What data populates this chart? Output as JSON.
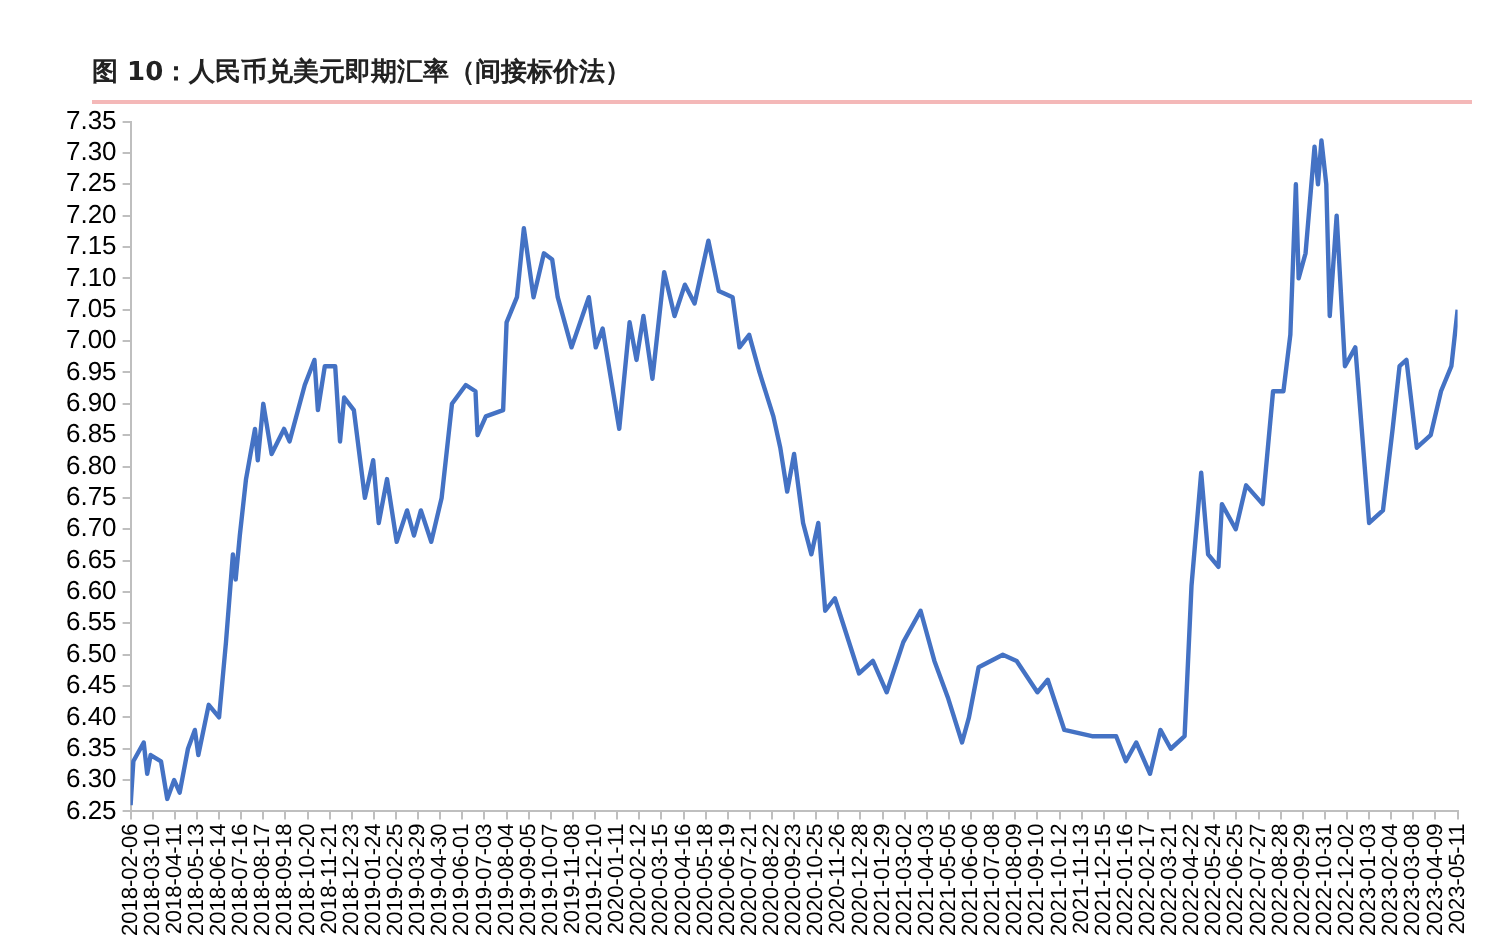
{
  "chart_data": {
    "type": "line",
    "title": "图 10：人民币兑美元即期汇率（间接标价法）",
    "x": [
      "2018-02-06",
      "2018-02-10",
      "2018-02-25",
      "2018-03-02",
      "2018-03-07",
      "2018-03-22",
      "2018-03-31",
      "2018-04-10",
      "2018-04-18",
      "2018-04-30",
      "2018-05-10",
      "2018-05-15",
      "2018-05-30",
      "2018-06-14",
      "2018-06-24",
      "2018-07-04",
      "2018-07-08",
      "2018-07-14",
      "2018-07-23",
      "2018-08-05",
      "2018-08-09",
      "2018-08-17",
      "2018-08-29",
      "2018-09-16",
      "2018-09-24",
      "2018-10-16",
      "2018-10-30",
      "2018-11-04",
      "2018-11-14",
      "2018-11-29",
      "2018-12-06",
      "2018-12-12",
      "2018-12-26",
      "2019-01-11",
      "2019-01-23",
      "2019-01-31",
      "2019-02-12",
      "2019-02-26",
      "2019-03-13",
      "2019-03-23",
      "2019-04-02",
      "2019-04-17",
      "2019-05-02",
      "2019-05-17",
      "2019-06-06",
      "2019-06-20",
      "2019-06-23",
      "2019-07-05",
      "2019-07-30",
      "2019-08-04",
      "2019-08-19",
      "2019-08-29",
      "2019-09-12",
      "2019-09-27",
      "2019-10-09",
      "2019-10-17",
      "2019-11-06",
      "2019-12-01",
      "2019-12-11",
      "2019-12-21",
      "2020-01-14",
      "2020-01-29",
      "2020-02-08",
      "2020-02-18",
      "2020-03-02",
      "2020-03-19",
      "2020-04-03",
      "2020-04-18",
      "2020-05-02",
      "2020-05-22",
      "2020-06-06",
      "2020-06-26",
      "2020-07-06",
      "2020-07-20",
      "2020-08-04",
      "2020-08-24",
      "2020-09-03",
      "2020-09-13",
      "2020-09-23",
      "2020-10-06",
      "2020-10-18",
      "2020-10-28",
      "2020-11-07",
      "2020-11-21",
      "2020-12-26",
      "2021-01-15",
      "2021-02-04",
      "2021-02-28",
      "2021-03-25",
      "2021-04-14",
      "2021-05-04",
      "2021-05-24",
      "2021-06-03",
      "2021-06-17",
      "2021-07-22",
      "2021-08-11",
      "2021-09-10",
      "2021-09-25",
      "2021-10-19",
      "2021-11-28",
      "2022-01-02",
      "2022-01-16",
      "2022-01-31",
      "2022-02-20",
      "2022-03-07",
      "2022-03-22",
      "2022-04-11",
      "2022-04-21",
      "2022-05-05",
      "2022-05-15",
      "2022-05-30",
      "2022-06-04",
      "2022-06-24",
      "2022-07-09",
      "2022-08-02",
      "2022-08-17",
      "2022-09-01",
      "2022-09-11",
      "2022-09-19",
      "2022-09-23",
      "2022-10-03",
      "2022-10-16",
      "2022-10-21",
      "2022-10-26",
      "2022-11-02",
      "2022-11-07",
      "2022-11-17",
      "2022-11-29",
      "2022-12-14",
      "2023-01-03",
      "2023-01-23",
      "2023-02-06",
      "2023-02-16",
      "2023-02-26",
      "2023-03-13",
      "2023-04-02",
      "2023-04-17",
      "2023-05-02",
      "2023-05-11"
    ],
    "series": [
      {
        "color": "#4472c4",
        "values": [
          6.26,
          6.33,
          6.36,
          6.31,
          6.34,
          6.33,
          6.27,
          6.3,
          6.28,
          6.35,
          6.38,
          6.34,
          6.42,
          6.4,
          6.52,
          6.66,
          6.62,
          6.69,
          6.78,
          6.86,
          6.81,
          6.9,
          6.82,
          6.86,
          6.84,
          6.93,
          6.97,
          6.89,
          6.96,
          6.96,
          6.84,
          6.91,
          6.89,
          6.75,
          6.81,
          6.71,
          6.78,
          6.68,
          6.73,
          6.69,
          6.73,
          6.68,
          6.75,
          6.9,
          6.93,
          6.92,
          6.85,
          6.88,
          6.89,
          7.03,
          7.07,
          7.18,
          7.07,
          7.14,
          7.13,
          7.07,
          6.99,
          7.07,
          6.99,
          7.02,
          6.86,
          7.03,
          6.97,
          7.04,
          6.94,
          7.11,
          7.04,
          7.09,
          7.06,
          7.16,
          7.08,
          7.07,
          6.99,
          7.01,
          6.95,
          6.88,
          6.83,
          6.76,
          6.82,
          6.71,
          6.66,
          6.71,
          6.57,
          6.59,
          6.47,
          6.49,
          6.44,
          6.52,
          6.57,
          6.49,
          6.43,
          6.36,
          6.4,
          6.48,
          6.5,
          6.49,
          6.44,
          6.46,
          6.38,
          6.37,
          6.37,
          6.33,
          6.36,
          6.31,
          6.38,
          6.35,
          6.37,
          6.61,
          6.79,
          6.66,
          6.64,
          6.74,
          6.7,
          6.77,
          6.74,
          6.92,
          6.92,
          7.01,
          7.25,
          7.1,
          7.14,
          7.31,
          7.25,
          7.32,
          7.25,
          7.04,
          7.2,
          6.96,
          6.99,
          6.71,
          6.73,
          6.86,
          6.96,
          6.97,
          6.83,
          6.85,
          6.92,
          6.96,
          7.05
        ]
      }
    ],
    "xlim": [
      "2018-02-06",
      "2023-05-11"
    ],
    "xticks": [
      "2018-02-06",
      "2018-03-10",
      "2018-04-11",
      "2018-05-13",
      "2018-06-14",
      "2018-07-16",
      "2018-08-17",
      "2018-09-18",
      "2018-10-20",
      "2018-11-21",
      "2018-12-23",
      "2019-01-24",
      "2019-02-25",
      "2019-03-29",
      "2019-04-30",
      "2019-06-01",
      "2019-07-03",
      "2019-08-04",
      "2019-09-05",
      "2019-10-07",
      "2019-11-08",
      "2019-12-10",
      "2020-01-11",
      "2020-02-12",
      "2020-03-15",
      "2020-04-16",
      "2020-05-18",
      "2020-06-19",
      "2020-07-21",
      "2020-08-22",
      "2020-09-23",
      "2020-10-25",
      "2020-11-26",
      "2020-12-28",
      "2021-01-29",
      "2021-03-02",
      "2021-04-03",
      "2021-05-05",
      "2021-06-06",
      "2021-07-08",
      "2021-08-09",
      "2021-09-10",
      "2021-10-12",
      "2021-11-13",
      "2021-12-15",
      "2022-01-16",
      "2022-02-17",
      "2022-03-21",
      "2022-04-22",
      "2022-05-24",
      "2022-06-25",
      "2022-07-27",
      "2022-08-28",
      "2022-09-29",
      "2022-10-31",
      "2022-12-02",
      "2023-01-03",
      "2023-02-04",
      "2023-03-08",
      "2023-04-09",
      "2023-05-11"
    ],
    "ylim": [
      6.25,
      7.35
    ],
    "yticks": [
      {
        "value": 6.25,
        "label": "6.25"
      },
      {
        "value": 6.3,
        "label": "6.30"
      },
      {
        "value": 6.35,
        "label": "6.35"
      },
      {
        "value": 6.4,
        "label": "6.40"
      },
      {
        "value": 6.45,
        "label": "6.45"
      },
      {
        "value": 6.5,
        "label": "6.50"
      },
      {
        "value": 6.55,
        "label": "6.55"
      },
      {
        "value": 6.6,
        "label": "6.60"
      },
      {
        "value": 6.65,
        "label": "6.65"
      },
      {
        "value": 6.7,
        "label": "6.70"
      },
      {
        "value": 6.75,
        "label": "6.75"
      },
      {
        "value": 6.8,
        "label": "6.80"
      },
      {
        "value": 6.85,
        "label": "6.85"
      },
      {
        "value": 6.9,
        "label": "6.90"
      },
      {
        "value": 6.95,
        "label": "6.95"
      },
      {
        "value": 7.0,
        "label": "7.00"
      },
      {
        "value": 7.05,
        "label": "7.05"
      },
      {
        "value": 7.1,
        "label": "7.10"
      },
      {
        "value": 7.15,
        "label": "7.15"
      },
      {
        "value": 7.2,
        "label": "7.20"
      },
      {
        "value": 7.25,
        "label": "7.25"
      },
      {
        "value": 7.3,
        "label": "7.30"
      },
      {
        "value": 7.35,
        "label": "7.35"
      }
    ],
    "grid": false,
    "legend": false
  }
}
